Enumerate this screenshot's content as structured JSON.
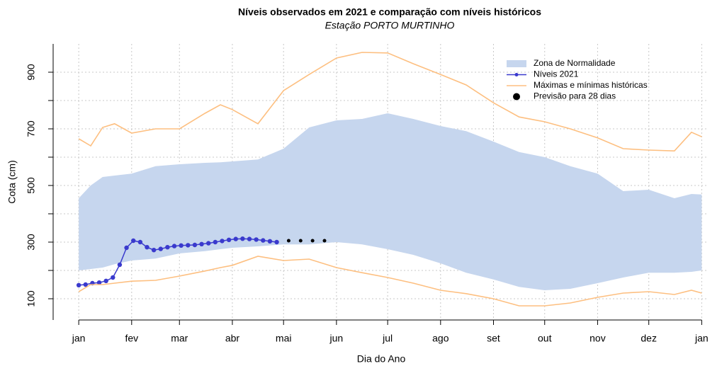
{
  "chart_data": {
    "type": "line",
    "title": "Níveis observados em 2021 e comparação com níveis históricos",
    "subtitle": "Estação PORTO MURTINHO",
    "x_label": "Dia do Ano",
    "y_label": "Cota (cm)",
    "xlim": [
      -14,
      370
    ],
    "ylim": [
      25,
      1000
    ],
    "xticks": [
      {
        "value": 1,
        "label": "jan"
      },
      {
        "value": 32,
        "label": "fev"
      },
      {
        "value": 60,
        "label": "mar"
      },
      {
        "value": 91,
        "label": "abr"
      },
      {
        "value": 121,
        "label": "mai"
      },
      {
        "value": 152,
        "label": "jun"
      },
      {
        "value": 182,
        "label": "jul"
      },
      {
        "value": 213,
        "label": "ago"
      },
      {
        "value": 244,
        "label": "set"
      },
      {
        "value": 274,
        "label": "out"
      },
      {
        "value": 305,
        "label": "nov"
      },
      {
        "value": 335,
        "label": "dez"
      },
      {
        "value": 366,
        "label": "jan"
      }
    ],
    "yticks": [
      100,
      300,
      500,
      700,
      900
    ],
    "minor_yticks": [
      200,
      400,
      600,
      800
    ],
    "grid": true,
    "legend": "top-right",
    "series": [
      {
        "name": "Zona de Normalidade",
        "kind": "band",
        "color": "#c6d6ee",
        "x": [
          1,
          8,
          15,
          22,
          32,
          46,
          60,
          75,
          84,
          91,
          106,
          121,
          136,
          152,
          167,
          182,
          197,
          213,
          228,
          244,
          259,
          274,
          289,
          305,
          320,
          335,
          350,
          360,
          366
        ],
        "upper": [
          455,
          500,
          530,
          535,
          542,
          568,
          575,
          580,
          582,
          585,
          592,
          630,
          705,
          730,
          735,
          755,
          735,
          710,
          692,
          655,
          618,
          600,
          568,
          542,
          480,
          485,
          455,
          470,
          468
        ],
        "lower": [
          200,
          205,
          210,
          222,
          235,
          242,
          260,
          268,
          275,
          280,
          285,
          292,
          292,
          300,
          292,
          275,
          255,
          225,
          192,
          168,
          142,
          130,
          135,
          155,
          175,
          192,
          192,
          195,
          200
        ]
      },
      {
        "name": "Níveis 2021",
        "kind": "points-line",
        "color": "#3a3acd",
        "x": [
          1,
          5,
          9,
          13,
          17,
          21,
          25,
          29,
          33,
          37,
          41,
          45,
          49,
          53,
          57,
          61,
          65,
          69,
          73,
          77,
          81,
          85,
          89,
          93,
          97,
          101,
          105,
          109,
          113,
          117
        ],
        "values": [
          148,
          150,
          155,
          157,
          163,
          175,
          220,
          280,
          305,
          300,
          282,
          272,
          276,
          282,
          286,
          288,
          289,
          290,
          293,
          296,
          300,
          304,
          308,
          311,
          312,
          311,
          309,
          306,
          303,
          300
        ]
      },
      {
        "name": "Máximas e mínimas históricas",
        "kind": "lines",
        "color": "#fdbf80",
        "x": [
          1,
          8,
          15,
          22,
          32,
          46,
          60,
          75,
          84,
          91,
          106,
          121,
          136,
          152,
          167,
          182,
          197,
          213,
          228,
          244,
          259,
          274,
          289,
          305,
          320,
          335,
          350,
          360,
          366
        ],
        "upper": [
          665,
          640,
          705,
          718,
          685,
          700,
          700,
          755,
          785,
          768,
          718,
          835,
          892,
          950,
          970,
          968,
          930,
          892,
          855,
          792,
          742,
          725,
          700,
          668,
          630,
          625,
          622,
          688,
          672
        ],
        "lower": [
          125,
          150,
          150,
          155,
          162,
          165,
          180,
          198,
          210,
          218,
          250,
          235,
          240,
          210,
          192,
          175,
          155,
          130,
          118,
          100,
          75,
          75,
          85,
          105,
          120,
          125,
          115,
          130,
          120
        ]
      },
      {
        "name": "Previsão para 28 dias",
        "kind": "points",
        "color": "#000000",
        "x": [
          124,
          131,
          138,
          145
        ],
        "values": [
          305,
          305,
          305,
          305
        ]
      }
    ]
  }
}
